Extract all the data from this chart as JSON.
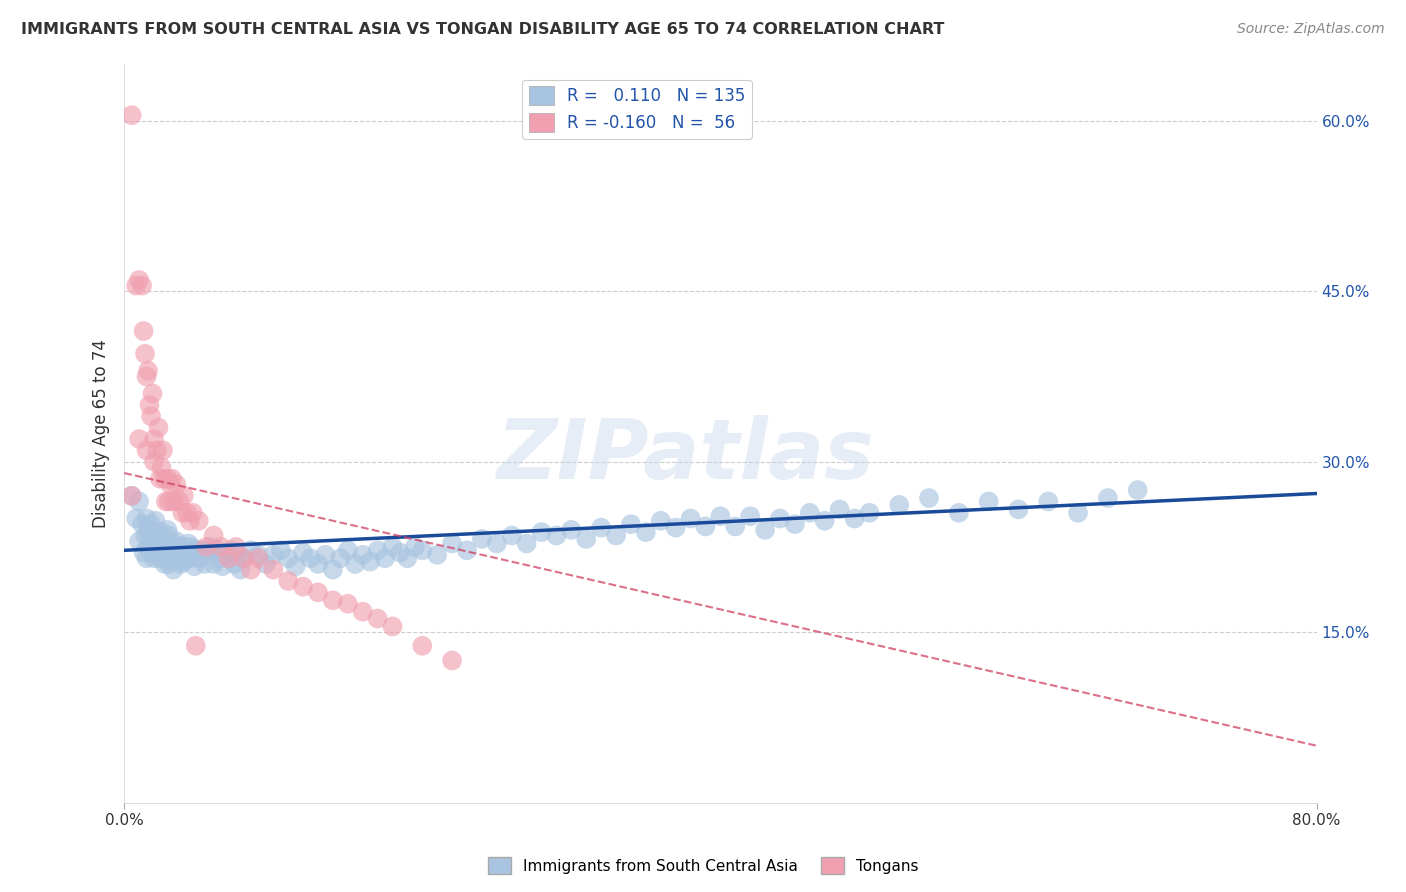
{
  "title": "IMMIGRANTS FROM SOUTH CENTRAL ASIA VS TONGAN DISABILITY AGE 65 TO 74 CORRELATION CHART",
  "source": "Source: ZipAtlas.com",
  "ylabel": "Disability Age 65 to 74",
  "xlim": [
    0.0,
    0.8
  ],
  "ylim": [
    0.0,
    0.65
  ],
  "yticks_right": [
    0.0,
    0.15,
    0.3,
    0.45,
    0.6
  ],
  "yticklabels_right": [
    "",
    "15.0%",
    "30.0%",
    "45.0%",
    "60.0%"
  ],
  "blue_R": 0.11,
  "blue_N": 135,
  "pink_R": -0.16,
  "pink_N": 56,
  "blue_color": "#a8c4e0",
  "pink_color": "#f0a0b0",
  "blue_line_color": "#1a4a9a",
  "pink_line_color": "#d04060",
  "watermark": "ZIPatlas",
  "blue_line_x0": 0.0,
  "blue_line_y0": 0.222,
  "blue_line_x1": 0.8,
  "blue_line_y1": 0.272,
  "pink_line_x0": 0.0,
  "pink_line_y0": 0.29,
  "pink_line_x1": 0.8,
  "pink_line_y1": 0.05,
  "blue_x": [
    0.005,
    0.008,
    0.01,
    0.01,
    0.012,
    0.013,
    0.014,
    0.015,
    0.015,
    0.016,
    0.016,
    0.017,
    0.018,
    0.018,
    0.019,
    0.02,
    0.02,
    0.021,
    0.021,
    0.022,
    0.022,
    0.023,
    0.023,
    0.024,
    0.024,
    0.025,
    0.025,
    0.026,
    0.026,
    0.027,
    0.028,
    0.029,
    0.03,
    0.03,
    0.03,
    0.031,
    0.032,
    0.033,
    0.033,
    0.034,
    0.035,
    0.036,
    0.037,
    0.038,
    0.039,
    0.04,
    0.041,
    0.042,
    0.043,
    0.044,
    0.045,
    0.046,
    0.047,
    0.048,
    0.05,
    0.052,
    0.054,
    0.056,
    0.058,
    0.06,
    0.062,
    0.064,
    0.066,
    0.068,
    0.07,
    0.072,
    0.074,
    0.076,
    0.078,
    0.08,
    0.085,
    0.09,
    0.095,
    0.1,
    0.105,
    0.11,
    0.115,
    0.12,
    0.125,
    0.13,
    0.135,
    0.14,
    0.145,
    0.15,
    0.155,
    0.16,
    0.165,
    0.17,
    0.175,
    0.18,
    0.185,
    0.19,
    0.195,
    0.2,
    0.21,
    0.22,
    0.23,
    0.24,
    0.25,
    0.26,
    0.27,
    0.28,
    0.29,
    0.3,
    0.31,
    0.32,
    0.33,
    0.34,
    0.35,
    0.36,
    0.37,
    0.38,
    0.39,
    0.4,
    0.41,
    0.42,
    0.43,
    0.44,
    0.45,
    0.46,
    0.47,
    0.48,
    0.49,
    0.5,
    0.52,
    0.54,
    0.56,
    0.58,
    0.6,
    0.62,
    0.64,
    0.66,
    0.68
  ],
  "blue_y": [
    0.27,
    0.25,
    0.265,
    0.23,
    0.245,
    0.22,
    0.235,
    0.25,
    0.215,
    0.24,
    0.225,
    0.235,
    0.22,
    0.245,
    0.23,
    0.235,
    0.215,
    0.228,
    0.248,
    0.225,
    0.238,
    0.22,
    0.233,
    0.215,
    0.228,
    0.238,
    0.222,
    0.218,
    0.232,
    0.21,
    0.225,
    0.24,
    0.22,
    0.235,
    0.21,
    0.225,
    0.215,
    0.228,
    0.205,
    0.218,
    0.23,
    0.215,
    0.225,
    0.21,
    0.22,
    0.212,
    0.225,
    0.218,
    0.228,
    0.215,
    0.225,
    0.218,
    0.208,
    0.222,
    0.215,
    0.222,
    0.21,
    0.218,
    0.225,
    0.21,
    0.222,
    0.215,
    0.208,
    0.22,
    0.215,
    0.222,
    0.21,
    0.218,
    0.205,
    0.215,
    0.222,
    0.218,
    0.21,
    0.218,
    0.222,
    0.215,
    0.208,
    0.22,
    0.215,
    0.21,
    0.218,
    0.205,
    0.215,
    0.222,
    0.21,
    0.218,
    0.212,
    0.222,
    0.215,
    0.225,
    0.22,
    0.215,
    0.225,
    0.222,
    0.218,
    0.228,
    0.222,
    0.232,
    0.228,
    0.235,
    0.228,
    0.238,
    0.235,
    0.24,
    0.232,
    0.242,
    0.235,
    0.245,
    0.238,
    0.248,
    0.242,
    0.25,
    0.243,
    0.252,
    0.243,
    0.252,
    0.24,
    0.25,
    0.245,
    0.255,
    0.248,
    0.258,
    0.25,
    0.255,
    0.262,
    0.268,
    0.255,
    0.265,
    0.258,
    0.265,
    0.255,
    0.268,
    0.275
  ],
  "pink_x": [
    0.005,
    0.005,
    0.008,
    0.01,
    0.01,
    0.012,
    0.013,
    0.014,
    0.015,
    0.015,
    0.016,
    0.017,
    0.018,
    0.019,
    0.02,
    0.02,
    0.022,
    0.023,
    0.024,
    0.025,
    0.026,
    0.027,
    0.028,
    0.029,
    0.03,
    0.031,
    0.032,
    0.033,
    0.035,
    0.037,
    0.039,
    0.04,
    0.042,
    0.044,
    0.046,
    0.048,
    0.05,
    0.055,
    0.06,
    0.065,
    0.07,
    0.075,
    0.08,
    0.085,
    0.09,
    0.1,
    0.11,
    0.12,
    0.13,
    0.14,
    0.15,
    0.16,
    0.17,
    0.18,
    0.2,
    0.22
  ],
  "pink_y": [
    0.605,
    0.27,
    0.455,
    0.46,
    0.32,
    0.455,
    0.415,
    0.395,
    0.375,
    0.31,
    0.38,
    0.35,
    0.34,
    0.36,
    0.32,
    0.3,
    0.31,
    0.33,
    0.285,
    0.295,
    0.31,
    0.285,
    0.265,
    0.285,
    0.265,
    0.28,
    0.285,
    0.265,
    0.28,
    0.265,
    0.255,
    0.27,
    0.255,
    0.248,
    0.255,
    0.138,
    0.248,
    0.225,
    0.235,
    0.225,
    0.215,
    0.225,
    0.215,
    0.205,
    0.215,
    0.205,
    0.195,
    0.19,
    0.185,
    0.178,
    0.175,
    0.168,
    0.162,
    0.155,
    0.138,
    0.125
  ]
}
